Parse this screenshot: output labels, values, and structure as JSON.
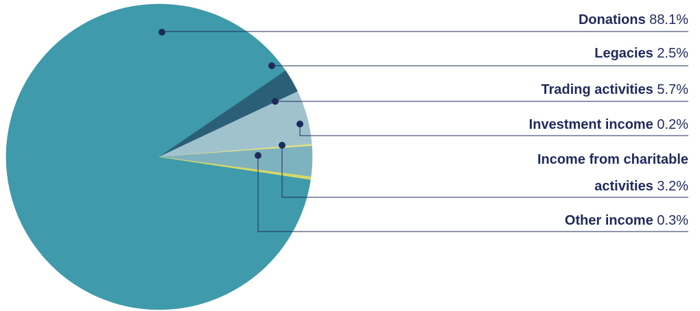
{
  "chart_data": {
    "type": "pie",
    "title": "",
    "slices": [
      {
        "label": "Donations",
        "value": 88.1,
        "value_label": "88.1%",
        "color": "#3f9aab"
      },
      {
        "label": "Legacies",
        "value": 2.5,
        "value_label": "2.5%",
        "color": "#2b5f78"
      },
      {
        "label": "Trading activities",
        "value": 5.7,
        "value_label": "5.7%",
        "color": "#9fc2cd"
      },
      {
        "label": "Investment income",
        "value": 0.2,
        "value_label": "0.2%",
        "color": "#dfe284"
      },
      {
        "label": "Income from charitable activities",
        "label_lines": [
          "Income from charitable",
          "activities"
        ],
        "value": 3.2,
        "value_label": "3.2%",
        "color": "#7fb2bf"
      },
      {
        "label": "Other income",
        "value": 0.3,
        "value_label": "0.3%",
        "color": "#d3d86a"
      }
    ],
    "label_color": "#1f2a5c",
    "leader_color": "#1f2a5c",
    "legend_position": "right"
  }
}
